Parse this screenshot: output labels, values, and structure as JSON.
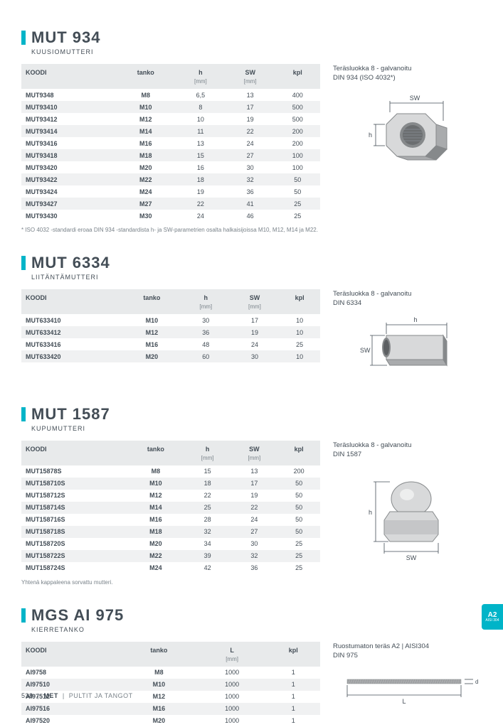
{
  "footer": {
    "page": "538",
    "cat": "MET",
    "rest": "PULTIT JA TANGOT"
  },
  "badge": {
    "line1": "A2",
    "line2": "AISI 304"
  },
  "sections": [
    {
      "title": "MUT 934",
      "subtitle": "KUUSIOMUTTERI",
      "side": [
        "Teräsluokka 8 - galvanoitu",
        "DIN 934 (ISO 4032*)"
      ],
      "footnote": "*  ISO 4032 -standardi eroaa DIN 934 -standardista h- ja SW-parametrien osalta halkaisijoissa M10, M12, M14 ja M22.",
      "headers": [
        "KOODI",
        "tanko",
        "h",
        "SW",
        "kpl"
      ],
      "units": [
        "",
        "",
        "[mm]",
        "[mm]",
        ""
      ],
      "colBold": [
        true,
        true,
        false,
        false,
        false
      ],
      "rows": [
        [
          "MUT9348",
          "M8",
          "6,5",
          "13",
          "400"
        ],
        [
          "MUT93410",
          "M10",
          "8",
          "17",
          "500"
        ],
        [
          "MUT93412",
          "M12",
          "10",
          "19",
          "500"
        ],
        [
          "MUT93414",
          "M14",
          "11",
          "22",
          "200"
        ],
        [
          "MUT93416",
          "M16",
          "13",
          "24",
          "200"
        ],
        [
          "MUT93418",
          "M18",
          "15",
          "27",
          "100"
        ],
        [
          "MUT93420",
          "M20",
          "16",
          "30",
          "100"
        ],
        [
          "MUT93422",
          "M22",
          "18",
          "32",
          "50"
        ],
        [
          "MUT93424",
          "M24",
          "19",
          "36",
          "50"
        ],
        [
          "MUT93427",
          "M27",
          "22",
          "41",
          "25"
        ],
        [
          "MUT93430",
          "M30",
          "24",
          "46",
          "25"
        ]
      ],
      "diagram": "hexnut"
    },
    {
      "title": "MUT 6334",
      "subtitle": "LIITÄNTÄMUTTERI",
      "side": [
        "Teräsluokka 8 - galvanoitu",
        "DIN 6334"
      ],
      "headers": [
        "KOODI",
        "tanko",
        "h",
        "SW",
        "kpl"
      ],
      "units": [
        "",
        "",
        "[mm]",
        "[mm]",
        ""
      ],
      "colBold": [
        true,
        true,
        false,
        false,
        false
      ],
      "rows": [
        [
          "MUT633410",
          "M10",
          "30",
          "17",
          "10"
        ],
        [
          "MUT633412",
          "M12",
          "36",
          "19",
          "10"
        ],
        [
          "MUT633416",
          "M16",
          "48",
          "24",
          "25"
        ],
        [
          "MUT633420",
          "M20",
          "60",
          "30",
          "10"
        ]
      ],
      "diagram": "coupler"
    },
    {
      "title": "MUT 1587",
      "subtitle": "KUPUMUTTERI",
      "side": [
        "Teräsluokka 8 - galvanoitu",
        "DIN 1587"
      ],
      "footnote": "Yhtenä kappaleena sorvattu mutteri.",
      "headers": [
        "KOODI",
        "tanko",
        "h",
        "SW",
        "kpl"
      ],
      "units": [
        "",
        "",
        "[mm]",
        "[mm]",
        ""
      ],
      "colBold": [
        true,
        true,
        false,
        false,
        false
      ],
      "rows": [
        [
          "MUT15878S",
          "M8",
          "15",
          "13",
          "200"
        ],
        [
          "MUT158710S",
          "M10",
          "18",
          "17",
          "50"
        ],
        [
          "MUT158712S",
          "M12",
          "22",
          "19",
          "50"
        ],
        [
          "MUT158714S",
          "M14",
          "25",
          "22",
          "50"
        ],
        [
          "MUT158716S",
          "M16",
          "28",
          "24",
          "50"
        ],
        [
          "MUT158718S",
          "M18",
          "32",
          "27",
          "50"
        ],
        [
          "MUT158720S",
          "M20",
          "34",
          "30",
          "25"
        ],
        [
          "MUT158722S",
          "M22",
          "39",
          "32",
          "25"
        ],
        [
          "MUT158724S",
          "M24",
          "42",
          "36",
          "25"
        ]
      ],
      "diagram": "domenut"
    },
    {
      "title": "MGS AI 975",
      "subtitle": "KIERRETANKO",
      "side": [
        "Ruostumaton teräs A2 | AISI304",
        "DIN 975"
      ],
      "headers": [
        "KOODI",
        "tanko",
        "L",
        "kpl"
      ],
      "units": [
        "",
        "",
        "[mm]",
        ""
      ],
      "colBold": [
        true,
        true,
        false,
        false
      ],
      "rows": [
        [
          "AI9758",
          "M8",
          "1000",
          "1"
        ],
        [
          "AI97510",
          "M10",
          "1000",
          "1"
        ],
        [
          "AI97512",
          "M12",
          "1000",
          "1"
        ],
        [
          "AI97516",
          "M16",
          "1000",
          "1"
        ],
        [
          "AI97520",
          "M20",
          "1000",
          "1"
        ]
      ],
      "diagram": "rod"
    }
  ],
  "diagrams": {
    "hexnut": {
      "hLabel": "h",
      "swLabel": "SW"
    },
    "coupler": {
      "hLabel": "h",
      "swLabel": "SW"
    },
    "domenut": {
      "hLabel": "h",
      "swLabel": "SW"
    },
    "rod": {
      "lLabel": "L",
      "dLabel": "d"
    }
  },
  "colors": {
    "accent": "#00b4c8",
    "text": "#434d56",
    "muted": "#7a838a",
    "headerBg": "#e8eaeb",
    "rowAlt": "#f0f1f2",
    "metal1": "#d8d9da",
    "metal2": "#a9abad",
    "metal3": "#86898b"
  }
}
